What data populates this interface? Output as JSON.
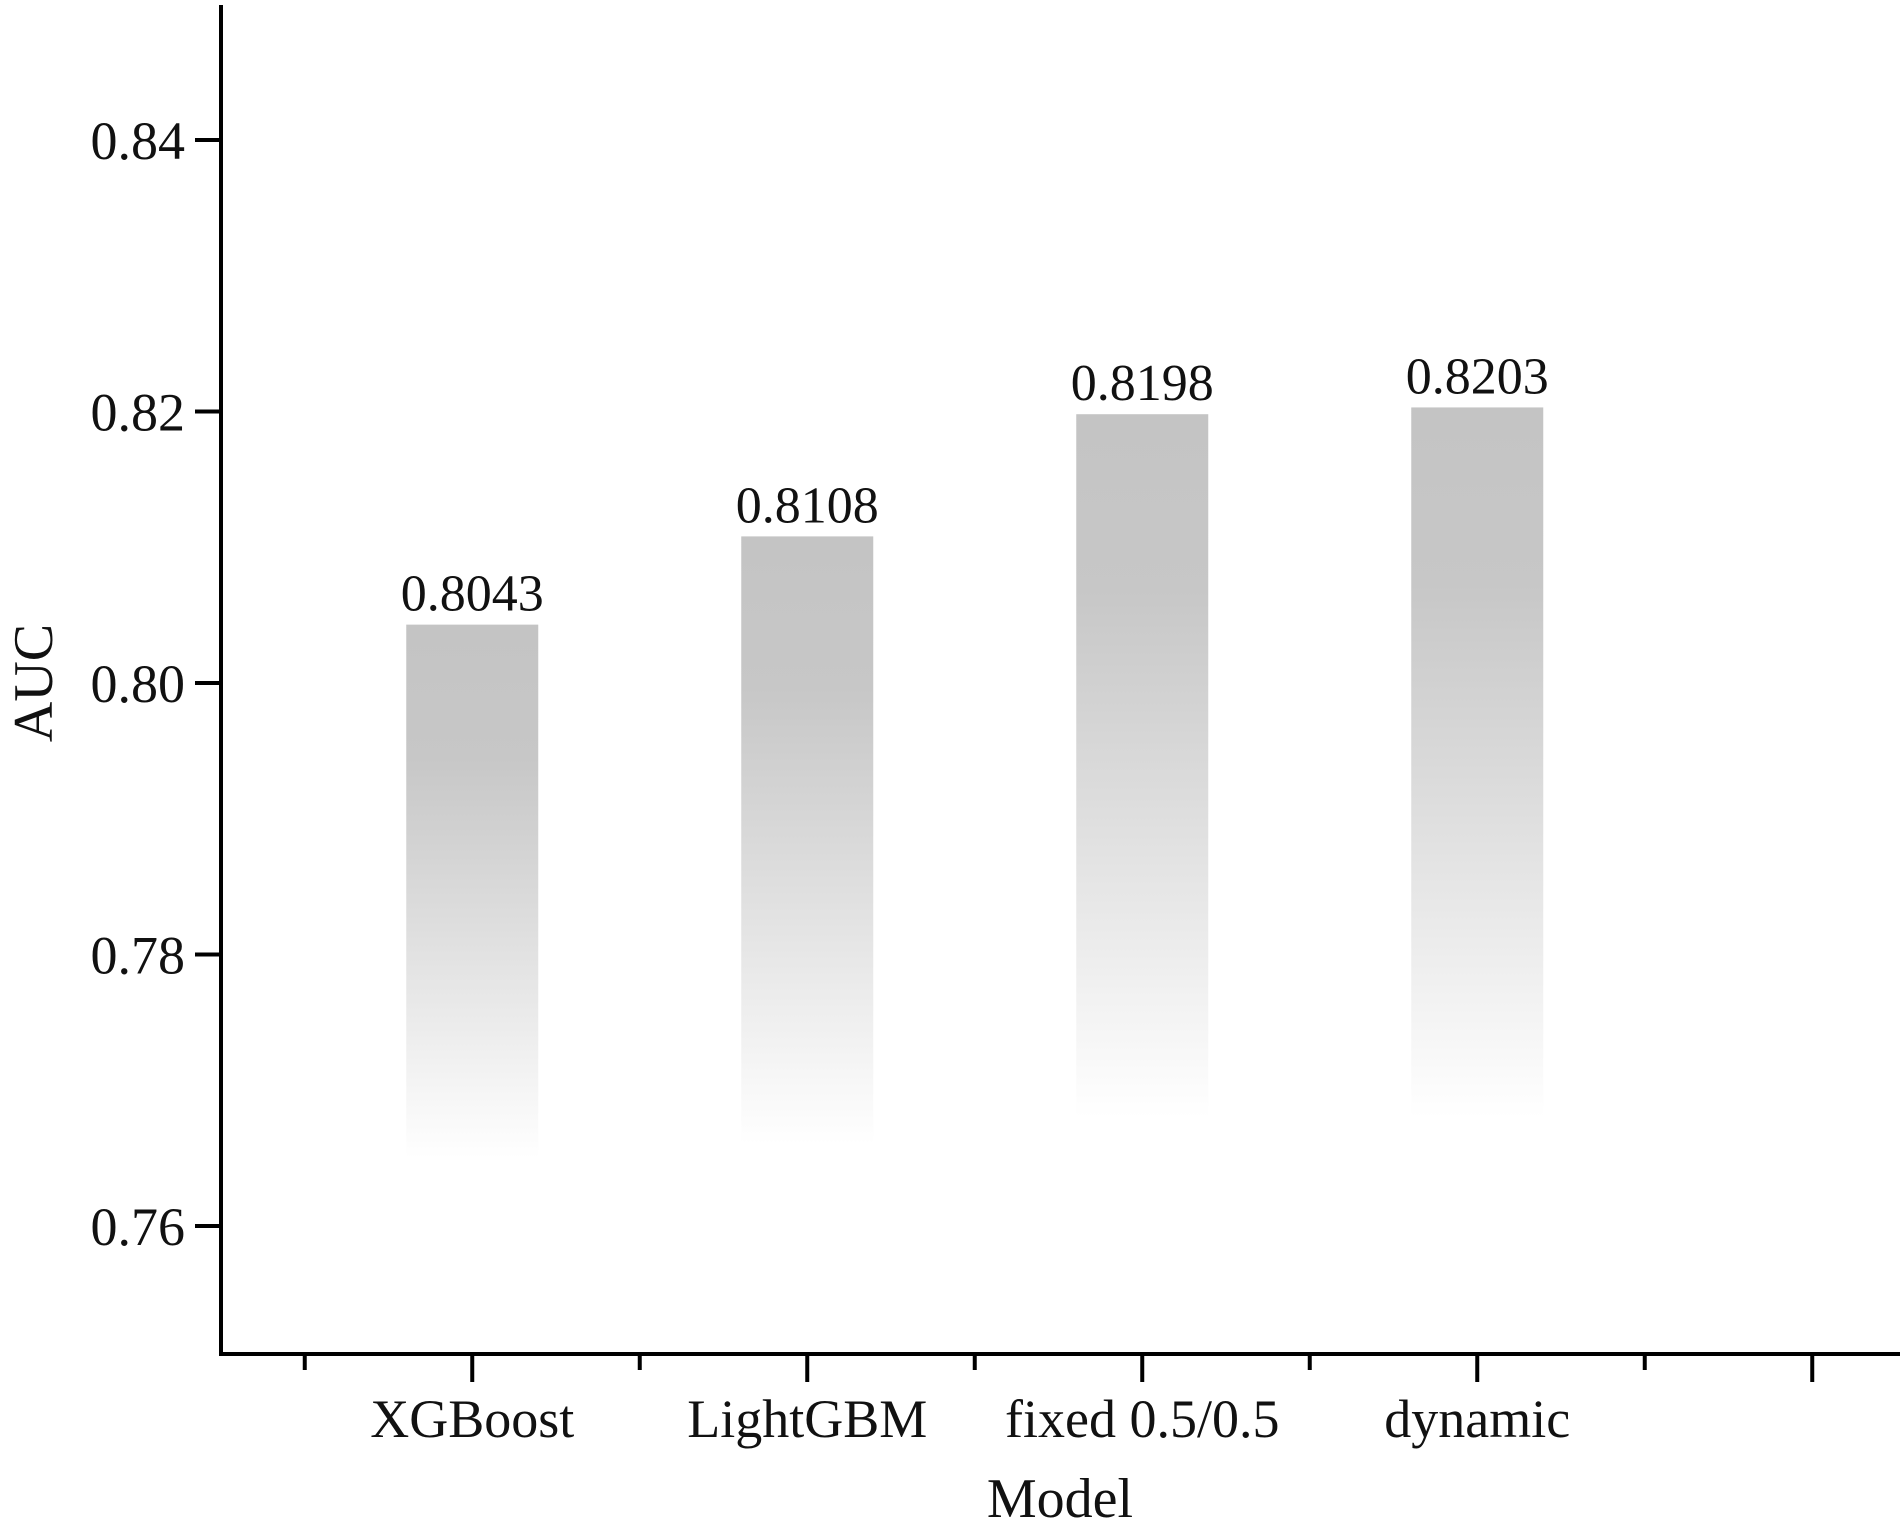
{
  "chart_data": {
    "type": "bar",
    "categories": [
      "XGBoost",
      "LightGBM",
      "fixed 0.5/0.5",
      "dynamic"
    ],
    "values": [
      0.8043,
      0.8108,
      0.8198,
      0.8203
    ],
    "value_labels": [
      "0.8043",
      "0.8108",
      "0.8198",
      "0.8203"
    ],
    "bar_gradient_bottom": [
      0.765,
      0.766,
      0.768,
      0.768
    ],
    "xlabel": "Model",
    "ylabel": "AUC",
    "ylim": [
      0.75,
      0.85
    ],
    "yticks": [
      0.76,
      0.78,
      0.8,
      0.82,
      0.84
    ],
    "ytick_labels": [
      "0.76",
      "0.78",
      "0.80",
      "0.82",
      "0.84"
    ],
    "x_slots": 10,
    "grid": false,
    "legend": "none"
  },
  "colors": {
    "bar_top": "#c4c4c4",
    "bar_fade": "#ffffff",
    "axis": "#000000",
    "text": "#111111"
  }
}
